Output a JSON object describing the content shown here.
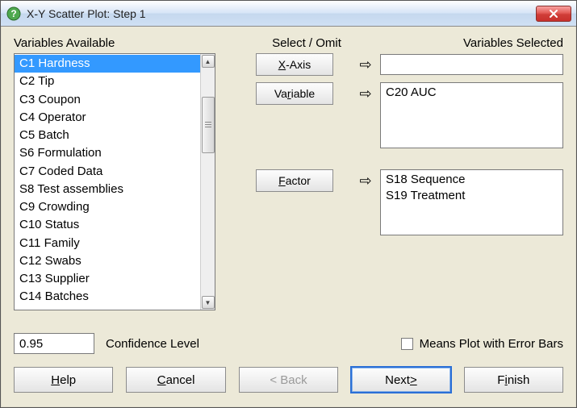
{
  "window": {
    "title": "X-Y Scatter Plot: Step 1",
    "close_icon": "close"
  },
  "labels": {
    "available": "Variables Available",
    "select_omit": "Select / Omit",
    "selected": "Variables Selected",
    "conf_level": "Confidence Level",
    "means_plot": "Means Plot with Error Bars"
  },
  "available": {
    "selected_index": 0,
    "items": [
      "C1 Hardness",
      "C2 Tip",
      "C3 Coupon",
      "C4 Operator",
      "C5 Batch",
      "S6 Formulation",
      "C7 Coded Data",
      "S8 Test assemblies",
      "C9 Crowding",
      "C10 Status",
      "C11 Family",
      "C12 Swabs",
      "C13 Supplier",
      "C14 Batches"
    ]
  },
  "buttons": {
    "xaxis": {
      "pre": "",
      "u": "X",
      "post": "-Axis"
    },
    "variable": {
      "pre": "Va",
      "u": "r",
      "post": "iable"
    },
    "factor": {
      "pre": "",
      "u": "F",
      "post": "actor"
    },
    "help": {
      "pre": "",
      "u": "H",
      "post": "elp"
    },
    "cancel": {
      "pre": "",
      "u": "C",
      "post": "ancel"
    },
    "back_full": "< Back",
    "next": {
      "pre": "Next ",
      "u": ">",
      "post": ""
    },
    "finish": {
      "pre": "F",
      "u": "i",
      "post": "nish"
    }
  },
  "selected": {
    "xaxis": "",
    "variables": [
      "C20 AUC"
    ],
    "factors": [
      "S18 Sequence",
      "S19 Treatment"
    ]
  },
  "confidence": {
    "value": "0.95"
  },
  "means_plot_checked": false,
  "colors": {
    "titlebar_bg": "#d5e4f7",
    "dialog_bg": "#ECE9D8",
    "selection_bg": "#3399ff",
    "close_bg": "#cf3e39",
    "border": "#7a7a7a"
  }
}
